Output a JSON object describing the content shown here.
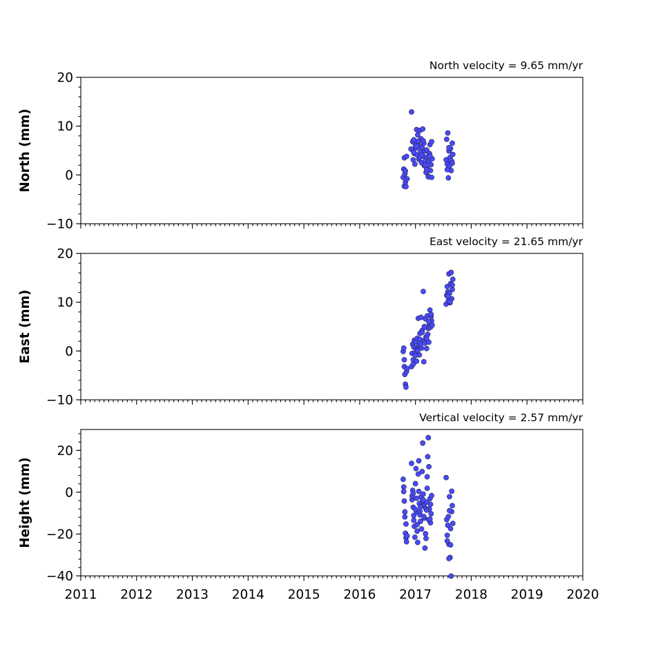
{
  "chart_data": [
    {
      "type": "scatter",
      "annotation": "North velocity = 9.65 mm/yr",
      "ylabel": "North (mm)",
      "xlim": [
        2011,
        2020
      ],
      "ylim": [
        -10,
        20
      ],
      "yticks": [
        -10,
        0,
        10,
        20
      ],
      "ytick_labels": [
        "−10",
        "0",
        "10",
        "20"
      ],
      "series": [
        {
          "x": [
            2016.78,
            2016.79,
            2016.8,
            2016.8,
            2016.81,
            2016.82,
            2016.82,
            2016.83,
            2016.84,
            2016.85,
            2016.93,
            2016.94,
            2016.95,
            2016.96,
            2016.97,
            2016.98,
            2016.99,
            2017.0,
            2017.01,
            2017.02,
            2017.03,
            2017.04,
            2017.05,
            2017.06,
            2017.07,
            2017.08,
            2017.09,
            2017.1,
            2017.11,
            2017.12,
            2017.13,
            2017.14,
            2017.15,
            2017.16,
            2017.17,
            2017.18,
            2017.19,
            2017.2,
            2017.21,
            2017.22,
            2017.23,
            2017.24,
            2017.25,
            2017.26,
            2017.27,
            2017.28,
            2017.29,
            2017.3,
            2016.92,
            2017.02,
            2017.08,
            2017.14,
            2017.2,
            2017.26,
            2016.97,
            2017.05,
            2017.11,
            2017.17,
            2017.23,
            2017.29,
            2017.55,
            2017.56,
            2017.57,
            2017.58,
            2017.59,
            2017.6,
            2017.61,
            2017.62,
            2017.63,
            2017.64,
            2017.65,
            2017.66,
            2017.67,
            2017.57,
            2017.6,
            2017.63,
            2017.66
          ],
          "y": [
            -0.5,
            1.2,
            3.5,
            -2.3,
            0.2,
            -1.5,
            0.8,
            -2.4,
            3.8,
            -0.8,
            12.9,
            5.2,
            6.8,
            3.1,
            7.2,
            4.4,
            2.2,
            6.1,
            5.5,
            9.3,
            4.1,
            8.2,
            6.7,
            3.2,
            5.9,
            9.1,
            4.8,
            7.4,
            2.5,
            5.6,
            9.4,
            3.8,
            6.5,
            1.9,
            4.9,
            2.9,
            0.5,
            5.1,
            1.4,
            3.7,
            -0.3,
            2.6,
            4.4,
            6.2,
            0.9,
            2.1,
            6.8,
            3.3,
            5.3,
            5.9,
            3.6,
            7.0,
            1.1,
            3.9,
            4.6,
            6.9,
            4.1,
            2.0,
            -0.4,
            -0.5,
            3.1,
            7.3,
            2.2,
            8.6,
            -0.6,
            4.9,
            1.8,
            3.6,
            5.4,
            0.9,
            2.8,
            6.5,
            4.2,
            1.1,
            5.6,
            3.0,
            2.4
          ]
        }
      ]
    },
    {
      "type": "scatter",
      "annotation": "East velocity = 21.65 mm/yr",
      "ylabel": "East (mm)",
      "xlim": [
        2011,
        2020
      ],
      "ylim": [
        -10,
        20
      ],
      "yticks": [
        -10,
        0,
        10,
        20
      ],
      "ytick_labels": [
        "−10",
        "0",
        "10",
        "20"
      ],
      "series": [
        {
          "x": [
            2016.78,
            2016.79,
            2016.8,
            2016.8,
            2016.81,
            2016.82,
            2016.83,
            2016.84,
            2016.85,
            2016.93,
            2016.94,
            2016.95,
            2016.96,
            2016.97,
            2016.98,
            2016.99,
            2017.0,
            2017.01,
            2017.02,
            2017.03,
            2017.04,
            2017.05,
            2017.06,
            2017.07,
            2017.08,
            2017.09,
            2017.1,
            2017.11,
            2017.12,
            2017.13,
            2017.14,
            2017.15,
            2017.16,
            2017.17,
            2017.18,
            2017.19,
            2017.2,
            2017.21,
            2017.22,
            2017.23,
            2017.24,
            2017.25,
            2017.26,
            2017.27,
            2017.28,
            2017.29,
            2017.3,
            2016.96,
            2017.0,
            2017.04,
            2017.08,
            2017.12,
            2017.16,
            2017.2,
            2017.24,
            2017.28,
            2017.55,
            2017.56,
            2017.57,
            2017.58,
            2017.59,
            2017.6,
            2017.61,
            2017.62,
            2017.63,
            2017.64,
            2017.65,
            2017.66,
            2017.67,
            2017.58,
            2017.62,
            2017.66
          ],
          "y": [
            -0.1,
            0.6,
            -1.8,
            -3.2,
            -4.8,
            -6.8,
            -7.4,
            -4.2,
            -3.6,
            -3.2,
            -0.5,
            1.4,
            -1.8,
            0.8,
            2.2,
            -0.4,
            1.9,
            0.5,
            -2.1,
            2.6,
            0.3,
            6.7,
            1.2,
            -0.8,
            3.6,
            1.5,
            6.9,
            0.6,
            4.2,
            2.1,
            12.2,
            -2.2,
            5.0,
            1.6,
            6.6,
            2.9,
            0.5,
            7.2,
            3.4,
            4.6,
            1.8,
            5.5,
            8.4,
            4.9,
            7.1,
            6.2,
            5.3,
            -2.7,
            -0.9,
            0.1,
            2.4,
            3.8,
            4.9,
            2.6,
            6.0,
            7.5,
            9.6,
            11.4,
            13.2,
            12.1,
            10.3,
            15.8,
            11.8,
            9.9,
            13.8,
            16.1,
            10.7,
            12.6,
            14.7,
            11.2,
            10.1,
            13.5
          ]
        }
      ]
    },
    {
      "type": "scatter",
      "annotation": "Vertical velocity = 2.57 mm/yr",
      "ylabel": "Height (mm)",
      "xlim": [
        2011,
        2020
      ],
      "ylim": [
        -40,
        30
      ],
      "yticks": [
        -40,
        -20,
        0,
        20
      ],
      "ytick_labels": [
        "−40",
        "−20",
        "0",
        "20"
      ],
      "xticks": [
        2011,
        2012,
        2013,
        2014,
        2015,
        2016,
        2017,
        2018,
        2019,
        2020
      ],
      "xtick_labels": [
        "2011",
        "2012",
        "2013",
        "2014",
        "2015",
        "2016",
        "2017",
        "2018",
        "2019",
        "2020"
      ],
      "series": [
        {
          "x": [
            2016.78,
            2016.79,
            2016.8,
            2016.81,
            2016.82,
            2016.83,
            2016.84,
            2016.85,
            2016.79,
            2016.81,
            2016.83,
            2016.93,
            2016.94,
            2016.95,
            2016.96,
            2016.97,
            2016.98,
            2016.99,
            2017.0,
            2017.01,
            2017.02,
            2017.03,
            2017.04,
            2017.05,
            2017.06,
            2017.07,
            2017.08,
            2017.09,
            2017.1,
            2017.11,
            2017.12,
            2017.13,
            2017.14,
            2017.15,
            2017.16,
            2017.17,
            2017.18,
            2017.19,
            2017.2,
            2017.21,
            2017.22,
            2017.23,
            2017.24,
            2017.25,
            2017.26,
            2017.27,
            2017.28,
            2017.29,
            2016.94,
            2016.97,
            2017.0,
            2017.03,
            2017.06,
            2017.09,
            2017.12,
            2017.15,
            2017.18,
            2017.21,
            2017.24,
            2017.27,
            2016.96,
            2017.02,
            2017.08,
            2017.14,
            2017.2,
            2017.26,
            2017.55,
            2017.56,
            2017.57,
            2017.58,
            2017.59,
            2017.6,
            2017.61,
            2017.62,
            2017.63,
            2017.64,
            2017.65,
            2017.66,
            2017.67,
            2017.57,
            2017.61,
            2017.65,
            2017.6,
            2017.63
          ],
          "y": [
            6.2,
            2.5,
            -4.2,
            -11.8,
            -19.6,
            -21.8,
            -23.7,
            -20.9,
            0.3,
            -9.4,
            -15.2,
            13.8,
            -3.6,
            0.9,
            -7.2,
            -13.4,
            -16.3,
            -21.5,
            4.1,
            11.3,
            -9.5,
            -18.6,
            -24.0,
            8.7,
            15.0,
            -5.4,
            -10.8,
            -13.9,
            -2.2,
            -17.6,
            9.9,
            23.5,
            -0.9,
            -6.3,
            -12.4,
            -26.7,
            -19.8,
            -22.1,
            -4.7,
            7.4,
            17.0,
            26.1,
            12.2,
            -8.0,
            -3.1,
            -14.6,
            -10.3,
            -1.6,
            -1.8,
            -11.1,
            -8.2,
            -15.5,
            0.4,
            -6.9,
            -4.4,
            -11.6,
            -7.7,
            1.9,
            -13.2,
            -5.8,
            -0.5,
            -2.9,
            -9.1,
            -3.7,
            -8.6,
            -12.8,
            7.0,
            -13.1,
            -20.6,
            -15.8,
            -11.7,
            -24.9,
            -2.1,
            -31.2,
            -17.4,
            -40.1,
            -9.3,
            -6.4,
            -14.9,
            -23.3,
            -8.8,
            0.5,
            -31.7,
            -25.2
          ]
        }
      ]
    }
  ]
}
